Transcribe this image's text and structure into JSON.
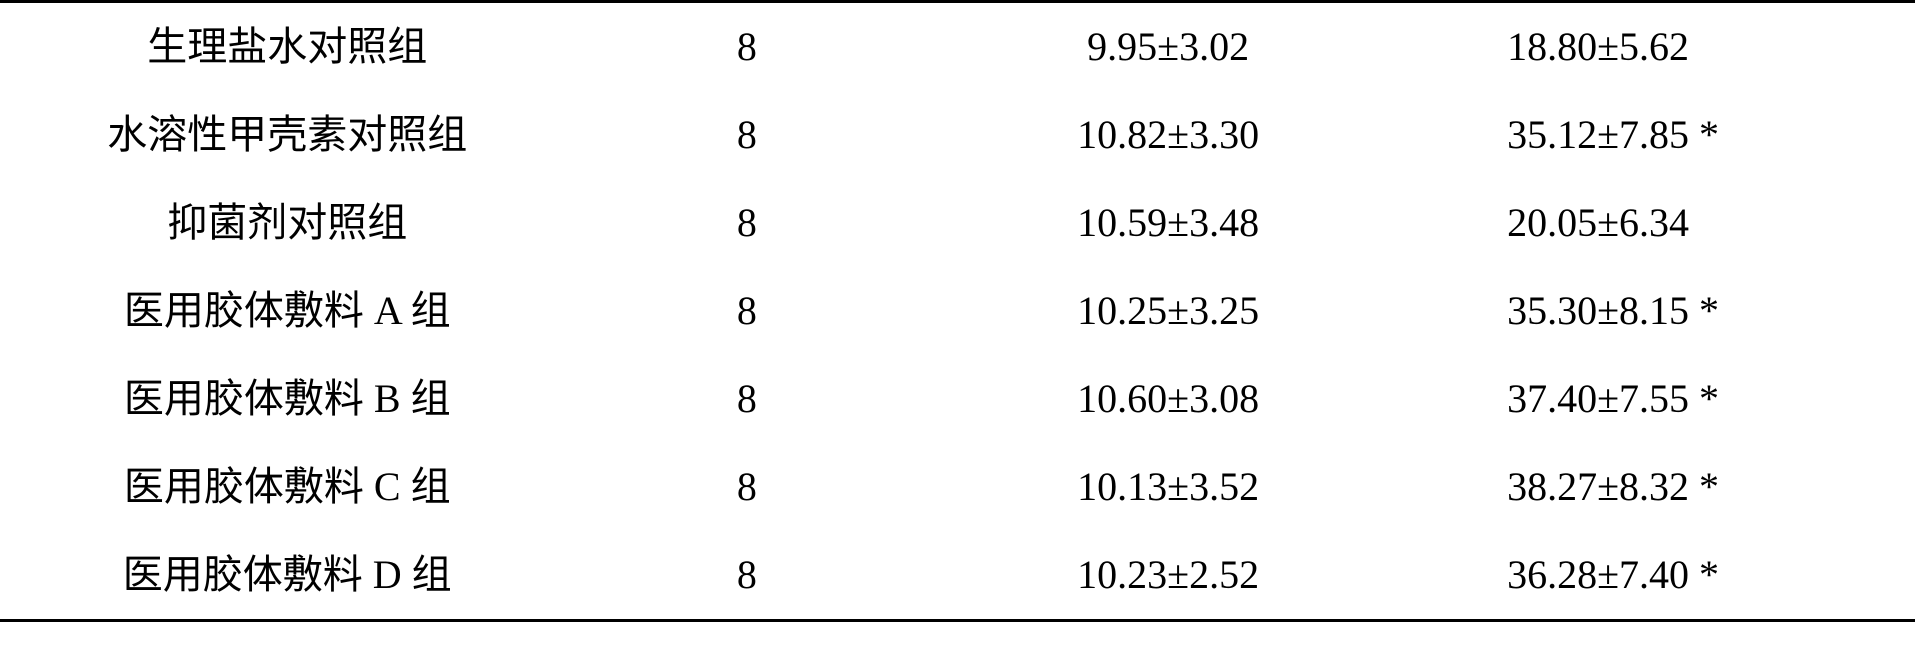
{
  "table": {
    "background_color": "#ffffff",
    "text_color": "#000000",
    "border_color": "#000000",
    "font_size": 40,
    "border_width": 3,
    "columns": [
      {
        "key": "group",
        "width_pct": 30,
        "align": "center"
      },
      {
        "key": "n",
        "width_pct": 18,
        "align": "center"
      },
      {
        "key": "val1",
        "width_pct": 26,
        "align": "center"
      },
      {
        "key": "val2",
        "width_pct": 26,
        "align": "left"
      }
    ],
    "rows": [
      {
        "group": "生理盐水对照组",
        "n": "8",
        "val1": "9.95±3.02",
        "val2": "18.80±5.62"
      },
      {
        "group": "水溶性甲壳素对照组",
        "n": "8",
        "val1": "10.82±3.30",
        "val2": "35.12±7.85 *"
      },
      {
        "group": "抑菌剂对照组",
        "n": "8",
        "val1": "10.59±3.48",
        "val2": "20.05±6.34"
      },
      {
        "group": "医用胶体敷料 A 组",
        "n": "8",
        "val1": "10.25±3.25",
        "val2": "35.30±8.15 *"
      },
      {
        "group": "医用胶体敷料 B 组",
        "n": "8",
        "val1": "10.60±3.08",
        "val2": "37.40±7.55 *"
      },
      {
        "group": "医用胶体敷料 C 组",
        "n": "8",
        "val1": "10.13±3.52",
        "val2": "38.27±8.32 *"
      },
      {
        "group": "医用胶体敷料 D 组",
        "n": "8",
        "val1": "10.23±2.52",
        "val2": "36.28±7.40 *"
      }
    ]
  }
}
